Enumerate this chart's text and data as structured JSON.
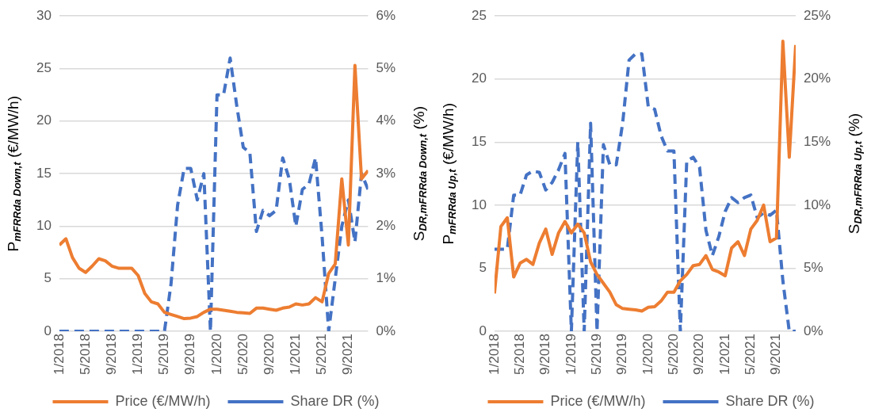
{
  "chart_data": [
    {
      "type": "line",
      "ylabel": "P$_{mFRRda Down,t}$ (€/MW/h)",
      "y2label": "S$_{DR,mFRRda Down,t}$ (%)",
      "x": [
        "2018-01",
        "2018-02",
        "2018-03",
        "2018-04",
        "2018-05",
        "2018-06",
        "2018-07",
        "2018-08",
        "2018-09",
        "2018-10",
        "2018-11",
        "2018-12",
        "2019-01",
        "2019-02",
        "2019-03",
        "2019-04",
        "2019-05",
        "2019-06",
        "2019-07",
        "2019-08",
        "2019-09",
        "2019-10",
        "2019-11",
        "2019-12",
        "2020-01",
        "2020-02",
        "2020-03",
        "2020-04",
        "2020-05",
        "2020-06",
        "2020-07",
        "2020-08",
        "2020-09",
        "2020-10",
        "2020-11",
        "2020-12",
        "2021-01",
        "2021-02",
        "2021-03",
        "2021-04",
        "2021-05",
        "2021-06",
        "2021-07",
        "2021-08",
        "2021-09",
        "2021-10",
        "2021-11",
        "2021-12"
      ],
      "series": [
        {
          "name": "Price (€/MW/h)",
          "color": "#ed7d31",
          "line_style": "solid",
          "values": [
            8.2,
            8.8,
            7.0,
            6.0,
            5.6,
            6.2,
            6.9,
            6.7,
            6.2,
            6.0,
            6.0,
            6.0,
            5.3,
            3.6,
            2.8,
            2.6,
            1.8,
            1.6,
            1.4,
            1.2,
            1.25,
            1.4,
            1.8,
            2.1,
            2.1,
            2.0,
            1.9,
            1.8,
            1.75,
            1.7,
            2.2,
            2.2,
            2.1,
            2.0,
            2.2,
            2.3,
            2.6,
            2.5,
            2.6,
            3.2,
            2.8,
            5.5,
            6.4,
            14.5,
            8.2,
            25.3,
            14.5,
            15.3
          ]
        },
        {
          "name": "Share DR (%)",
          "color": "#4472c4",
          "line_style": "dashed",
          "axis": "y2",
          "values": [
            0,
            0,
            0,
            0,
            0,
            0,
            0,
            0,
            0,
            0,
            0,
            0,
            0,
            0,
            0,
            0,
            0,
            0.9,
            2.4,
            3.1,
            3.1,
            2.5,
            3.0,
            0,
            4.5,
            4.5,
            5.2,
            4.3,
            3.5,
            3.4,
            1.9,
            2.3,
            2.2,
            2.3,
            3.3,
            2.9,
            2.0,
            2.7,
            2.8,
            3.3,
            1.8,
            0,
            1.0,
            2.0,
            2.5,
            1.7,
            3.0,
            2.7
          ]
        }
      ],
      "xlim": [
        "2018-01",
        "2021-12"
      ],
      "xticks": [
        {
          "value": "2018-01",
          "label": "1/2018"
        },
        {
          "value": "2018-05",
          "label": "5/2018"
        },
        {
          "value": "2018-09",
          "label": "9/2018"
        },
        {
          "value": "2019-01",
          "label": "1/2019"
        },
        {
          "value": "2019-05",
          "label": "5/2019"
        },
        {
          "value": "2019-09",
          "label": "9/2019"
        },
        {
          "value": "2020-01",
          "label": "1/2020"
        },
        {
          "value": "2020-05",
          "label": "5/2020"
        },
        {
          "value": "2020-09",
          "label": "9/2020"
        },
        {
          "value": "2021-01",
          "label": "1/2021"
        },
        {
          "value": "2021-05",
          "label": "5/2021"
        },
        {
          "value": "2021-09",
          "label": "9/2021"
        }
      ],
      "ylim": [
        0,
        30
      ],
      "yticks": [
        0,
        5,
        10,
        15,
        20,
        25,
        30
      ],
      "y2lim": [
        0,
        6
      ],
      "y2ticks": [
        {
          "value": 0,
          "label": "0%"
        },
        {
          "value": 1,
          "label": "1%"
        },
        {
          "value": 2,
          "label": "2%"
        },
        {
          "value": 3,
          "label": "3%"
        },
        {
          "value": 4,
          "label": "4%"
        },
        {
          "value": 5,
          "label": "5%"
        },
        {
          "value": 6,
          "label": "6%"
        }
      ],
      "grid": "y",
      "legend": "bottom"
    },
    {
      "type": "line",
      "ylabel": "P$_{mFRRda Up,t}$ (€/MW/h)",
      "y2label": "S$_{DR,mFRRda Up,t}$ (%)",
      "x": [
        "2018-01",
        "2018-02",
        "2018-03",
        "2018-04",
        "2018-05",
        "2018-06",
        "2018-07",
        "2018-08",
        "2018-09",
        "2018-10",
        "2018-11",
        "2018-12",
        "2019-01",
        "2019-02",
        "2019-03",
        "2019-04",
        "2019-05",
        "2019-06",
        "2019-07",
        "2019-08",
        "2019-09",
        "2019-10",
        "2019-11",
        "2019-12",
        "2020-01",
        "2020-02",
        "2020-03",
        "2020-04",
        "2020-05",
        "2020-06",
        "2020-07",
        "2020-08",
        "2020-09",
        "2020-10",
        "2020-11",
        "2020-12",
        "2021-01",
        "2021-02",
        "2021-03",
        "2021-04",
        "2021-05",
        "2021-06",
        "2021-07",
        "2021-08",
        "2021-09",
        "2021-10",
        "2021-11",
        "2021-12"
      ],
      "series": [
        {
          "name": "Price (€/MW/h)",
          "color": "#ed7d31",
          "line_style": "solid",
          "values": [
            3.0,
            8.3,
            9.0,
            4.3,
            5.4,
            5.7,
            5.3,
            7.0,
            8.1,
            6.1,
            7.8,
            8.7,
            7.8,
            8.5,
            7.8,
            5.5,
            4.5,
            3.8,
            3.1,
            2.1,
            1.8,
            1.75,
            1.7,
            1.6,
            1.9,
            1.95,
            2.4,
            3.1,
            3.1,
            4.0,
            4.5,
            5.2,
            5.3,
            6.0,
            4.9,
            4.7,
            4.4,
            6.6,
            7.1,
            6.0,
            8.1,
            8.8,
            10.0,
            7.1,
            7.4,
            23.0,
            13.8,
            22.7
          ]
        },
        {
          "name": "Share DR (%)",
          "color": "#4472c4",
          "line_style": "dashed",
          "axis": "y2",
          "values": [
            6.5,
            6.5,
            6.5,
            10.8,
            10.8,
            12.4,
            12.7,
            12.6,
            11.2,
            11.8,
            12.8,
            14.1,
            0,
            15,
            0,
            16.5,
            0,
            14.8,
            13.2,
            13.2,
            16.5,
            21.5,
            22,
            22,
            17.8,
            17.6,
            15.5,
            14.3,
            14.3,
            0,
            13.5,
            13.8,
            13.0,
            8.0,
            6.0,
            7.5,
            9.5,
            10.6,
            10.2,
            10.6,
            10.8,
            9.0,
            9.4,
            9.2,
            9.6,
            4.0,
            0,
            0
          ]
        }
      ],
      "xlim": [
        "2018-01",
        "2021-12"
      ],
      "xticks": [
        {
          "value": "2018-01",
          "label": "1/2018"
        },
        {
          "value": "2018-05",
          "label": "5/2018"
        },
        {
          "value": "2018-09",
          "label": "9/2018"
        },
        {
          "value": "2019-01",
          "label": "1/2019"
        },
        {
          "value": "2019-05",
          "label": "5/2019"
        },
        {
          "value": "2019-09",
          "label": "9/2019"
        },
        {
          "value": "2020-01",
          "label": "1/2020"
        },
        {
          "value": "2020-05",
          "label": "5/2020"
        },
        {
          "value": "2020-09",
          "label": "9/2020"
        },
        {
          "value": "2021-01",
          "label": "1/2021"
        },
        {
          "value": "2021-05",
          "label": "5/2021"
        },
        {
          "value": "2021-09",
          "label": "9/2021"
        }
      ],
      "ylim": [
        0,
        25
      ],
      "yticks": [
        0,
        5,
        10,
        15,
        20,
        25
      ],
      "y2lim": [
        0,
        25
      ],
      "y2ticks": [
        {
          "value": 0,
          "label": "0%"
        },
        {
          "value": 5,
          "label": "5%"
        },
        {
          "value": 10,
          "label": "10%"
        },
        {
          "value": 15,
          "label": "15%"
        },
        {
          "value": 20,
          "label": "20%"
        },
        {
          "value": 25,
          "label": "25%"
        }
      ],
      "grid": "y",
      "legend": "bottom"
    }
  ]
}
